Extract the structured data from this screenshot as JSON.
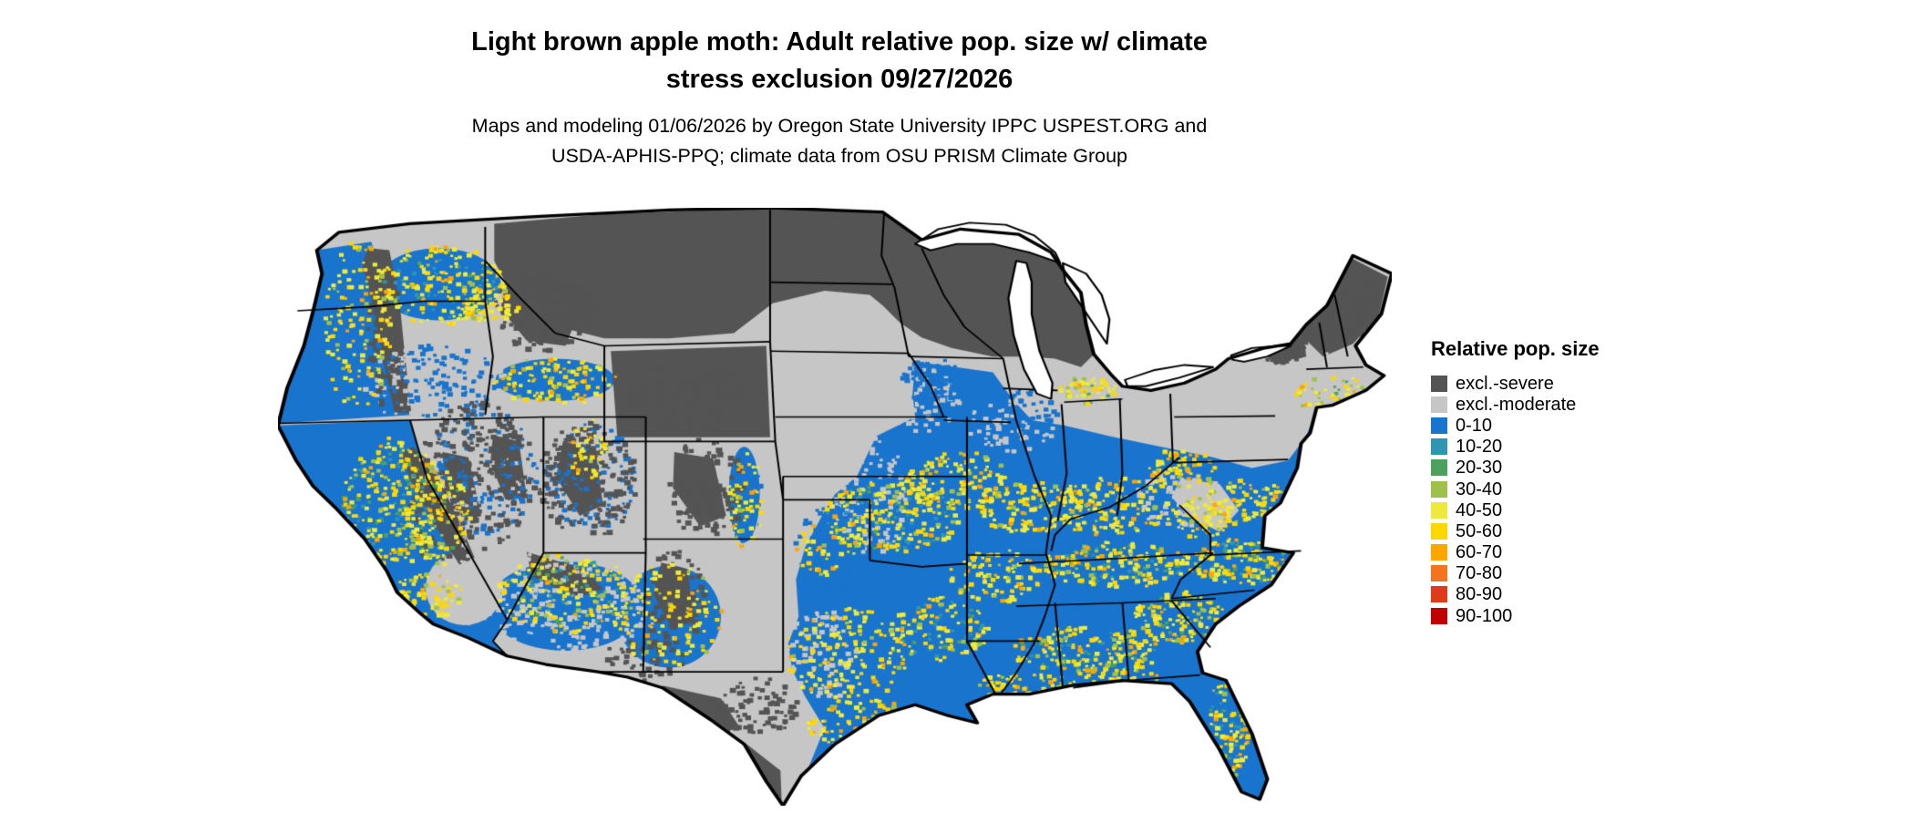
{
  "title": {
    "line1": "Light brown apple moth: Adult relative pop. size w/ climate",
    "line2": "stress exclusion 09/27/2026"
  },
  "subtitle": {
    "line1": "Maps and modeling 01/06/2026 by Oregon State University IPPC USPEST.ORG and",
    "line2": "USDA-APHIS-PPQ; climate data from OSU PRISM Climate Group"
  },
  "map": {
    "region": "Continental United States",
    "kind": "raster choropleth with state boundaries",
    "boundary_color": "#000000",
    "water_color": "#ffffff"
  },
  "legend": {
    "title": "Relative pop. size",
    "items": [
      {
        "label": "excl.-severe",
        "color": "#545454"
      },
      {
        "label": "excl.-moderate",
        "color": "#c6c6c6"
      },
      {
        "label": "0-10",
        "color": "#1874cd"
      },
      {
        "label": "10-20",
        "color": "#2e96b0"
      },
      {
        "label": "20-30",
        "color": "#4ca25c"
      },
      {
        "label": "30-40",
        "color": "#a0c04c"
      },
      {
        "label": "40-50",
        "color": "#eeea3d"
      },
      {
        "label": "50-60",
        "color": "#ffd700"
      },
      {
        "label": "60-70",
        "color": "#ffa500"
      },
      {
        "label": "70-80",
        "color": "#f4731f"
      },
      {
        "label": "80-90",
        "color": "#dd3b1b"
      },
      {
        "label": "90-100",
        "color": "#c00000"
      }
    ]
  }
}
